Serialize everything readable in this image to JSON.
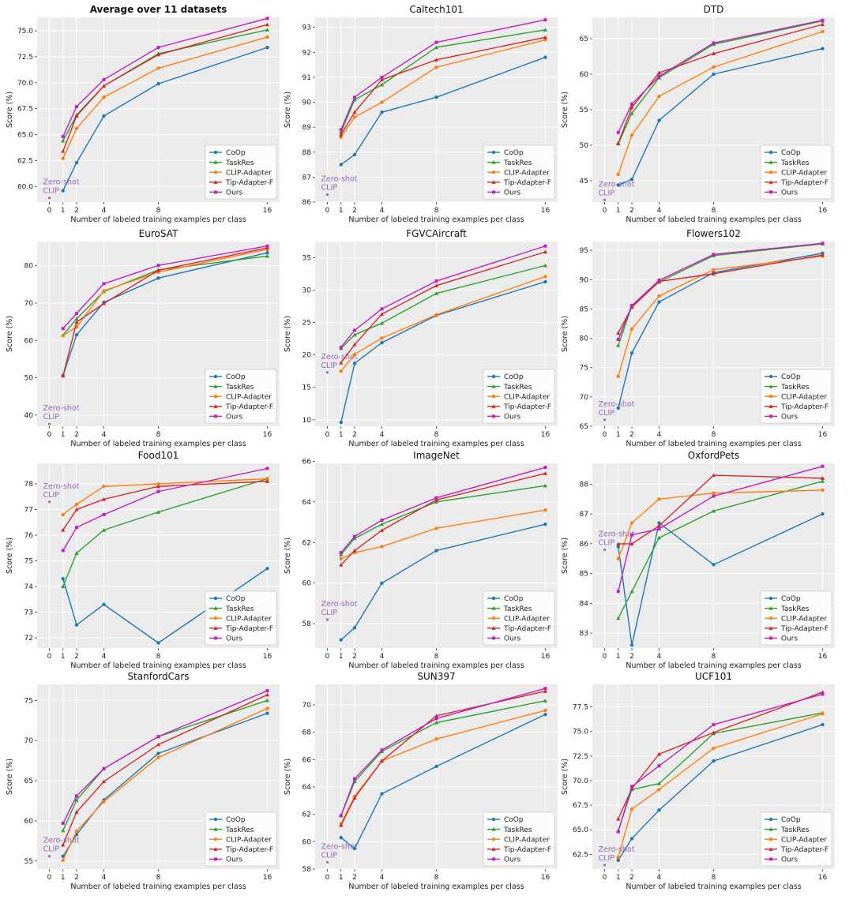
{
  "colors": {
    "CoOp": "#1f77b4",
    "TaskRes": "#2ca02c",
    "CLIP-Adapter": "#ff7f0e",
    "Tip-Adapter-F": "#d62728",
    "Ours": "#c020c0",
    "zeroshot": "#9467bd",
    "panel_bg": "#ebebeb",
    "grid": "#ffffff"
  },
  "common": {
    "xlabel": "Number of labeled training examples per class",
    "ylabel": "Score (%)",
    "x_ticks": [
      0,
      1,
      2,
      4,
      8,
      16
    ],
    "x_shots": [
      1,
      2,
      4,
      8,
      16
    ],
    "legend": [
      "CoOp",
      "TaskRes",
      "CLIP-Adapter",
      "Tip-Adapter-F",
      "Ours"
    ],
    "zeroshot_label_line1": "Zero-shot",
    "zeroshot_label_line2": "CLIP"
  },
  "chart_data": [
    {
      "type": "line",
      "title": "Average over 11 datasets",
      "title_bold": true,
      "ylim": [
        58.5,
        76.3
      ],
      "yticks": [
        "60.0",
        "62.5",
        "65.0",
        "67.5",
        "70.0",
        "72.5",
        "75.0"
      ],
      "ytick_values": [
        60,
        62.5,
        65,
        67.5,
        70,
        72.5,
        75
      ],
      "zeroshot": 58.9,
      "series": [
        {
          "name": "CoOp",
          "values": [
            59.6,
            62.3,
            66.8,
            69.9,
            73.4
          ]
        },
        {
          "name": "TaskRes",
          "values": [
            64.4,
            66.9,
            69.7,
            72.8,
            75.1
          ]
        },
        {
          "name": "CLIP-Adapter",
          "values": [
            62.7,
            65.6,
            68.6,
            71.4,
            74.4
          ]
        },
        {
          "name": "Tip-Adapter-F",
          "values": [
            63.4,
            66.8,
            69.7,
            72.7,
            75.6
          ]
        },
        {
          "name": "Ours",
          "values": [
            64.8,
            67.7,
            70.3,
            73.4,
            76.2
          ]
        }
      ]
    },
    {
      "type": "line",
      "title": "Caltech101",
      "ylim": [
        86.0,
        93.4
      ],
      "yticks": [
        "86",
        "87",
        "88",
        "89",
        "90",
        "91",
        "92",
        "93"
      ],
      "ytick_values": [
        86,
        87,
        88,
        89,
        90,
        91,
        92,
        93
      ],
      "zeroshot": 86.3,
      "series": [
        {
          "name": "CoOp",
          "values": [
            87.5,
            87.9,
            89.6,
            90.2,
            91.8
          ]
        },
        {
          "name": "TaskRes",
          "values": [
            88.8,
            90.1,
            90.7,
            92.2,
            92.9
          ]
        },
        {
          "name": "CLIP-Adapter",
          "values": [
            88.6,
            89.4,
            90.0,
            91.4,
            92.5
          ]
        },
        {
          "name": "Tip-Adapter-F",
          "values": [
            88.7,
            89.6,
            90.9,
            91.7,
            92.6
          ]
        },
        {
          "name": "Ours",
          "values": [
            88.9,
            90.2,
            91.0,
            92.4,
            93.3
          ]
        }
      ]
    },
    {
      "type": "line",
      "title": "DTD",
      "ylim": [
        42.0,
        68.0
      ],
      "yticks": [
        "45",
        "50",
        "55",
        "60",
        "65"
      ],
      "ytick_values": [
        45,
        50,
        55,
        60,
        65
      ],
      "zeroshot": 42.3,
      "series": [
        {
          "name": "CoOp",
          "values": [
            44.4,
            45.2,
            53.5,
            60.0,
            63.6
          ]
        },
        {
          "name": "TaskRes",
          "values": [
            50.2,
            54.5,
            59.5,
            64.2,
            67.5
          ]
        },
        {
          "name": "CLIP-Adapter",
          "values": [
            45.9,
            51.4,
            56.9,
            61.0,
            66.0
          ]
        },
        {
          "name": "Tip-Adapter-F",
          "values": [
            50.3,
            55.3,
            60.2,
            62.9,
            67.0
          ]
        },
        {
          "name": "Ours",
          "values": [
            51.8,
            55.8,
            59.7,
            64.4,
            67.6
          ]
        }
      ]
    },
    {
      "type": "line",
      "title": "EuroSAT",
      "ylim": [
        37.0,
        86.5
      ],
      "yticks": [
        "40",
        "50",
        "60",
        "70",
        "80"
      ],
      "ytick_values": [
        40,
        50,
        60,
        70,
        80
      ],
      "zeroshot": 37.6,
      "series": [
        {
          "name": "CoOp",
          "values": [
            50.6,
            61.5,
            70.2,
            76.7,
            83.5
          ]
        },
        {
          "name": "TaskRes",
          "values": [
            61.4,
            65.8,
            73.1,
            78.9,
            82.6
          ]
        },
        {
          "name": "CLIP-Adapter",
          "values": [
            61.3,
            63.6,
            73.3,
            78.3,
            84.4
          ]
        },
        {
          "name": "Tip-Adapter-F",
          "values": [
            50.5,
            64.9,
            69.9,
            78.8,
            84.8
          ]
        },
        {
          "name": "Ours",
          "values": [
            63.2,
            67.2,
            75.2,
            80.1,
            85.3
          ]
        }
      ]
    },
    {
      "type": "line",
      "title": "FGVCAircraft",
      "ylim": [
        9.0,
        37.5
      ],
      "yticks": [
        "10",
        "15",
        "20",
        "25",
        "30",
        "35"
      ],
      "ytick_values": [
        10,
        15,
        20,
        25,
        30,
        35
      ],
      "zeroshot": 17.3,
      "series": [
        {
          "name": "CoOp",
          "values": [
            9.6,
            18.7,
            21.9,
            26.1,
            31.3
          ]
        },
        {
          "name": "TaskRes",
          "values": [
            21.0,
            23.1,
            24.9,
            29.5,
            33.8
          ]
        },
        {
          "name": "CLIP-Adapter",
          "values": [
            17.5,
            20.1,
            22.6,
            26.2,
            32.1
          ]
        },
        {
          "name": "Tip-Adapter-F",
          "values": [
            18.8,
            21.6,
            26.3,
            30.7,
            35.9
          ]
        },
        {
          "name": "Ours",
          "values": [
            21.2,
            23.8,
            27.1,
            31.4,
            36.8
          ]
        }
      ]
    },
    {
      "type": "line",
      "title": "Flowers102",
      "ylim": [
        65.0,
        96.5
      ],
      "yticks": [
        "65",
        "70",
        "75",
        "80",
        "85",
        "90",
        "95"
      ],
      "ytick_values": [
        65,
        70,
        75,
        80,
        85,
        90,
        95
      ],
      "zeroshot": 66.1,
      "series": [
        {
          "name": "CoOp",
          "values": [
            68.1,
            77.5,
            86.2,
            91.2,
            94.5
          ]
        },
        {
          "name": "TaskRes",
          "values": [
            78.8,
            85.5,
            89.6,
            94.1,
            96.1
          ]
        },
        {
          "name": "CLIP-Adapter",
          "values": [
            73.5,
            81.6,
            87.2,
            91.7,
            94.0
          ]
        },
        {
          "name": "Tip-Adapter-F",
          "values": [
            80.9,
            85.3,
            89.7,
            91.0,
            94.2
          ]
        },
        {
          "name": "Ours",
          "values": [
            79.8,
            85.6,
            89.9,
            94.3,
            96.2
          ]
        }
      ]
    },
    {
      "type": "line",
      "title": "Food101",
      "ylim": [
        71.6,
        78.8
      ],
      "yticks": [
        "72",
        "73",
        "74",
        "75",
        "76",
        "77",
        "78"
      ],
      "ytick_values": [
        72,
        73,
        74,
        75,
        76,
        77,
        78
      ],
      "zeroshot": 77.3,
      "series": [
        {
          "name": "CoOp",
          "values": [
            74.3,
            72.5,
            73.3,
            71.8,
            74.7
          ]
        },
        {
          "name": "TaskRes",
          "values": [
            74.0,
            75.3,
            76.2,
            76.9,
            78.2
          ]
        },
        {
          "name": "CLIP-Adapter",
          "values": [
            76.8,
            77.2,
            77.9,
            78.0,
            78.2
          ]
        },
        {
          "name": "Tip-Adapter-F",
          "values": [
            76.2,
            77.0,
            77.4,
            77.9,
            78.1
          ]
        },
        {
          "name": "Ours",
          "values": [
            75.4,
            76.3,
            76.8,
            77.7,
            78.6
          ]
        }
      ]
    },
    {
      "type": "line",
      "title": "ImageNet",
      "ylim": [
        56.8,
        65.9
      ],
      "yticks": [
        "58",
        "60",
        "62",
        "64",
        "66"
      ],
      "ytick_values": [
        58,
        60,
        62,
        64,
        66
      ],
      "zeroshot": 58.2,
      "series": [
        {
          "name": "CoOp",
          "values": [
            57.2,
            57.8,
            60.0,
            61.6,
            62.9
          ]
        },
        {
          "name": "TaskRes",
          "values": [
            61.4,
            62.2,
            62.9,
            64.0,
            64.8
          ]
        },
        {
          "name": "CLIP-Adapter",
          "values": [
            61.2,
            61.5,
            61.8,
            62.7,
            63.6
          ]
        },
        {
          "name": "Tip-Adapter-F",
          "values": [
            60.9,
            61.6,
            62.6,
            64.1,
            65.4
          ]
        },
        {
          "name": "Ours",
          "values": [
            61.5,
            62.3,
            63.1,
            64.2,
            65.7
          ]
        }
      ]
    },
    {
      "type": "line",
      "title": "OxfordPets",
      "ylim": [
        82.5,
        88.7
      ],
      "yticks": [
        "83",
        "84",
        "85",
        "86",
        "87",
        "88"
      ],
      "ytick_values": [
        83,
        84,
        85,
        86,
        87,
        88
      ],
      "zeroshot": 85.8,
      "series": [
        {
          "name": "CoOp",
          "values": [
            85.9,
            82.6,
            86.7,
            85.3,
            87.0
          ]
        },
        {
          "name": "TaskRes",
          "values": [
            83.5,
            84.4,
            86.2,
            87.1,
            88.1
          ]
        },
        {
          "name": "CLIP-Adapter",
          "values": [
            85.5,
            86.7,
            87.5,
            87.7,
            87.8
          ]
        },
        {
          "name": "Tip-Adapter-F",
          "values": [
            86.0,
            86.0,
            86.6,
            88.3,
            88.2
          ]
        },
        {
          "name": "Ours",
          "values": [
            84.4,
            86.3,
            86.5,
            87.6,
            88.6
          ]
        }
      ]
    },
    {
      "type": "line",
      "title": "StanfordCars",
      "ylim": [
        54.0,
        77.0
      ],
      "yticks": [
        "55",
        "60",
        "65",
        "70",
        "75"
      ],
      "ytick_values": [
        55,
        60,
        65,
        70,
        75
      ],
      "zeroshot": 55.6,
      "series": [
        {
          "name": "CoOp",
          "values": [
            55.6,
            58.3,
            62.6,
            68.4,
            73.4
          ]
        },
        {
          "name": "TaskRes",
          "values": [
            58.8,
            62.6,
            66.5,
            70.5,
            75.0
          ]
        },
        {
          "name": "CLIP-Adapter",
          "values": [
            55.1,
            58.7,
            62.4,
            67.9,
            74.0
          ]
        },
        {
          "name": "Tip-Adapter-F",
          "values": [
            57.0,
            61.1,
            64.9,
            69.5,
            75.7
          ]
        },
        {
          "name": "Ours",
          "values": [
            59.7,
            63.1,
            66.5,
            70.5,
            76.2
          ]
        }
      ]
    },
    {
      "type": "line",
      "title": "SUN397",
      "ylim": [
        58.0,
        71.5
      ],
      "yticks": [
        "58",
        "60",
        "62",
        "64",
        "66",
        "68",
        "70"
      ],
      "ytick_values": [
        58,
        60,
        62,
        64,
        66,
        68,
        70
      ],
      "zeroshot": 58.5,
      "series": [
        {
          "name": "CoOp",
          "values": [
            60.3,
            59.5,
            63.5,
            65.5,
            69.3
          ]
        },
        {
          "name": "TaskRes",
          "values": [
            61.9,
            64.4,
            66.6,
            68.7,
            70.3
          ]
        },
        {
          "name": "CLIP-Adapter",
          "values": [
            61.3,
            63.3,
            65.9,
            67.5,
            69.6
          ]
        },
        {
          "name": "Tip-Adapter-F",
          "values": [
            61.2,
            63.2,
            65.9,
            69.2,
            71.0
          ]
        },
        {
          "name": "Ours",
          "values": [
            61.9,
            64.6,
            66.7,
            69.0,
            71.2
          ]
        }
      ]
    },
    {
      "type": "line",
      "title": "UCF101",
      "ylim": [
        61.0,
        79.8
      ],
      "yticks": [
        "62.5",
        "65.0",
        "67.5",
        "70.0",
        "72.5",
        "75.0",
        "77.5"
      ],
      "ytick_values": [
        62.5,
        65,
        67.5,
        70,
        72.5,
        75,
        77.5
      ],
      "zeroshot": 61.4,
      "series": [
        {
          "name": "CoOp",
          "values": [
            61.9,
            64.1,
            67.0,
            72.0,
            75.7
          ]
        },
        {
          "name": "TaskRes",
          "values": [
            64.9,
            69.1,
            69.7,
            74.8,
            76.9
          ]
        },
        {
          "name": "CLIP-Adapter",
          "values": [
            62.2,
            67.1,
            69.1,
            73.3,
            76.8
          ]
        },
        {
          "name": "Tip-Adapter-F",
          "values": [
            66.1,
            69.2,
            72.7,
            74.9,
            79.0
          ]
        },
        {
          "name": "Ours",
          "values": [
            64.8,
            69.4,
            71.5,
            75.7,
            78.8
          ]
        }
      ]
    }
  ]
}
